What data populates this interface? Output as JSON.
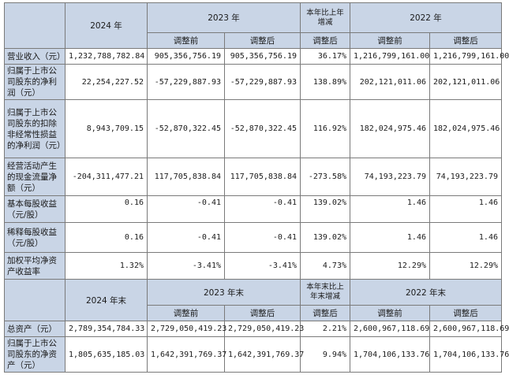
{
  "header1": {
    "y2024": "2024 年",
    "y2023": "2023 年",
    "change": "本年比上年增减",
    "y2022": "2022 年"
  },
  "sub1": {
    "before": "调整前",
    "after": "调整后",
    "change_after": "调整后",
    "before_2022": "调整前",
    "after_2022": "调整后"
  },
  "rows1": [
    {
      "label": "营业收入（元）",
      "v2024": "1,232,788,782.84",
      "b2023": "905,356,756.19",
      "a2023": "905,356,756.19",
      "chg": "36.17%",
      "b2022": "1,216,799,161.00",
      "a2022": "1,216,799,161.00"
    },
    {
      "label": "归属于上市公司股东的净利润（元）",
      "v2024": "22,254,227.52",
      "b2023": "-57,229,887.93",
      "a2023": "-57,229,887.93",
      "chg": "138.89%",
      "b2022": "202,121,011.06",
      "a2022": "202,121,011.06"
    },
    {
      "label": "归属于上市公司股东的扣除非经常性损益的净利润（元）",
      "v2024": "8,943,709.15",
      "b2023": "-52,870,322.45",
      "a2023": "-52,870,322.45",
      "chg": "116.92%",
      "b2022": "182,024,975.46",
      "a2022": "182,024,975.46"
    },
    {
      "label": "经营活动产生的现金流量净额（元）",
      "v2024": "-204,311,477.21",
      "b2023": "117,705,838.84",
      "a2023": "117,705,838.84",
      "chg": "-273.58%",
      "b2022": "74,193,223.79",
      "a2022": "74,193,223.79"
    },
    {
      "label": "基本每股收益（元/股）",
      "v2024": "0.16",
      "b2023": "-0.41",
      "a2023": "-0.41",
      "chg": "139.02%",
      "b2022": "1.46",
      "a2022": "1.46"
    },
    {
      "label": "稀释每股收益（元/股）",
      "v2024": "0.16",
      "b2023": "-0.41",
      "a2023": "-0.41",
      "chg": "139.02%",
      "b2022": "1.46",
      "a2022": "1.46"
    },
    {
      "label": "加权平均净资产收益率",
      "v2024": "1.32%",
      "b2023": "-3.41%",
      "a2023": "-3.41%",
      "chg": "4.73%",
      "b2022": "12.29%",
      "a2022": "12.29%"
    }
  ],
  "header2": {
    "y2024": "2024 年末",
    "y2023": "2023 年末",
    "change": "本年末比上年末增减",
    "y2022": "2022 年末"
  },
  "sub2": {
    "before": "调整前",
    "after": "调整后",
    "change_after": "调整后",
    "before_2022": "调整前",
    "after_2022": "调整后"
  },
  "rows2": [
    {
      "label": "总资产（元）",
      "v2024": "2,789,354,784.33",
      "b2023": "2,729,050,419.23",
      "a2023": "2,729,050,419.23",
      "chg": "2.21%",
      "b2022": "2,600,967,118.69",
      "a2022": "2,600,967,118.69"
    },
    {
      "label": "归属于上市公司股东的净资产（元）",
      "v2024": "1,805,635,185.03",
      "b2023": "1,642,391,769.37",
      "a2023": "1,642,391,769.37",
      "chg": "9.94%",
      "b2022": "1,704,106,133.76",
      "a2022": "1,704,106,133.76"
    }
  ]
}
